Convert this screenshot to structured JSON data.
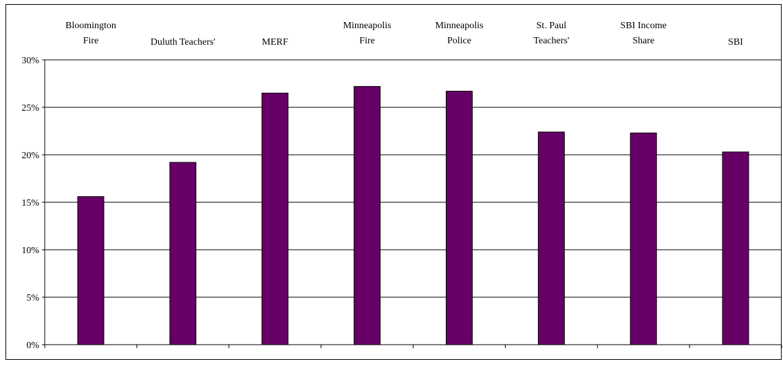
{
  "chart_data": {
    "type": "bar",
    "categories": [
      [
        "Bloomington",
        "Fire"
      ],
      [
        "Duluth Teachers'"
      ],
      [
        "MERF"
      ],
      [
        "Minneapolis",
        "Fire"
      ],
      [
        "Minneapolis",
        "Police"
      ],
      [
        "St. Paul",
        "Teachers'"
      ],
      [
        "SBI Income",
        "Share"
      ],
      [
        "SBI"
      ]
    ],
    "values": [
      15.6,
      19.2,
      26.5,
      27.2,
      26.7,
      22.4,
      22.3,
      20.3
    ],
    "ylim": [
      0,
      30
    ],
    "yticks": [
      0,
      5,
      10,
      15,
      20,
      25,
      30
    ],
    "tick_format": "%",
    "grid": true,
    "legend": "none",
    "bar_color": "#660066",
    "category_label_position": "top"
  }
}
